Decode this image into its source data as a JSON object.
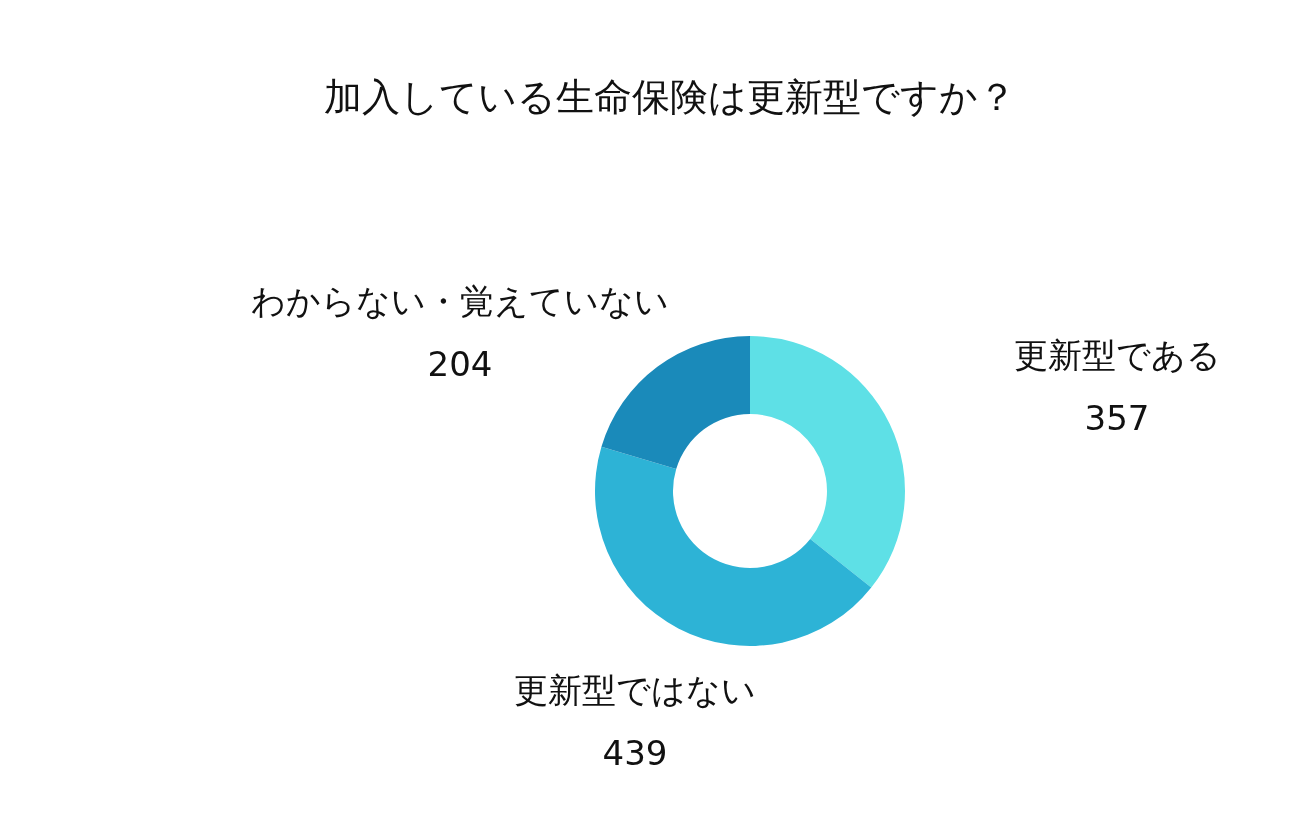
{
  "chart_data": {
    "type": "donut",
    "title": "加入している生命保険は更新型ですか？",
    "categories": [
      "更新型である",
      "更新型ではない",
      "わからない・覚えていない"
    ],
    "values": [
      357,
      439,
      204
    ],
    "colors": [
      "#5ee0e6",
      "#2db3d6",
      "#1a8aba"
    ],
    "data_labels": true
  }
}
